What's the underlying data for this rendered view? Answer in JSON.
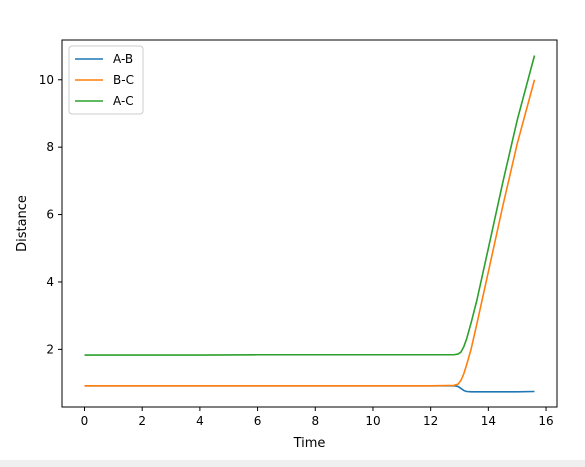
{
  "chart_data": {
    "type": "line",
    "title": "",
    "xlabel": "Time",
    "ylabel": "Distance",
    "xlim": [
      -0.78,
      16.38
    ],
    "ylim": [
      0.29,
      11.18
    ],
    "xticks": [
      0,
      2,
      4,
      6,
      8,
      10,
      12,
      14,
      16
    ],
    "yticks": [
      2,
      4,
      6,
      8,
      10
    ],
    "grid": false,
    "legend_position": "top-left",
    "colors": {
      "A-B": "#1f77b4",
      "B-C": "#ff7f0e",
      "A-C": "#2ca02c"
    },
    "series": [
      {
        "name": "A-B",
        "x": [
          0,
          2,
          4,
          6,
          8,
          10,
          12,
          12.8,
          12.95,
          13.05,
          13.15,
          13.25,
          13.4,
          13.6,
          14.0,
          14.5,
          15.0,
          15.6
        ],
        "y": [
          0.92,
          0.92,
          0.92,
          0.92,
          0.92,
          0.92,
          0.92,
          0.92,
          0.9,
          0.84,
          0.78,
          0.75,
          0.74,
          0.74,
          0.74,
          0.74,
          0.74,
          0.75
        ]
      },
      {
        "name": "B-C",
        "x": [
          0,
          2,
          4,
          6,
          8,
          10,
          12,
          12.8,
          12.95,
          13.05,
          13.15,
          13.25,
          13.4,
          13.6,
          14.0,
          14.5,
          15.0,
          15.6
        ],
        "y": [
          0.92,
          0.92,
          0.92,
          0.92,
          0.92,
          0.92,
          0.92,
          0.93,
          0.97,
          1.08,
          1.28,
          1.55,
          2.0,
          2.75,
          4.3,
          6.25,
          8.1,
          10.0
        ]
      },
      {
        "name": "A-C",
        "x": [
          0,
          2,
          4,
          6,
          8,
          10,
          12,
          12.8,
          12.95,
          13.05,
          13.15,
          13.25,
          13.4,
          13.6,
          14.0,
          14.5,
          15.0,
          15.6
        ],
        "y": [
          1.83,
          1.83,
          1.83,
          1.84,
          1.84,
          1.84,
          1.84,
          1.84,
          1.86,
          1.92,
          2.08,
          2.32,
          2.78,
          3.45,
          5.0,
          6.95,
          8.8,
          10.72
        ]
      }
    ]
  }
}
